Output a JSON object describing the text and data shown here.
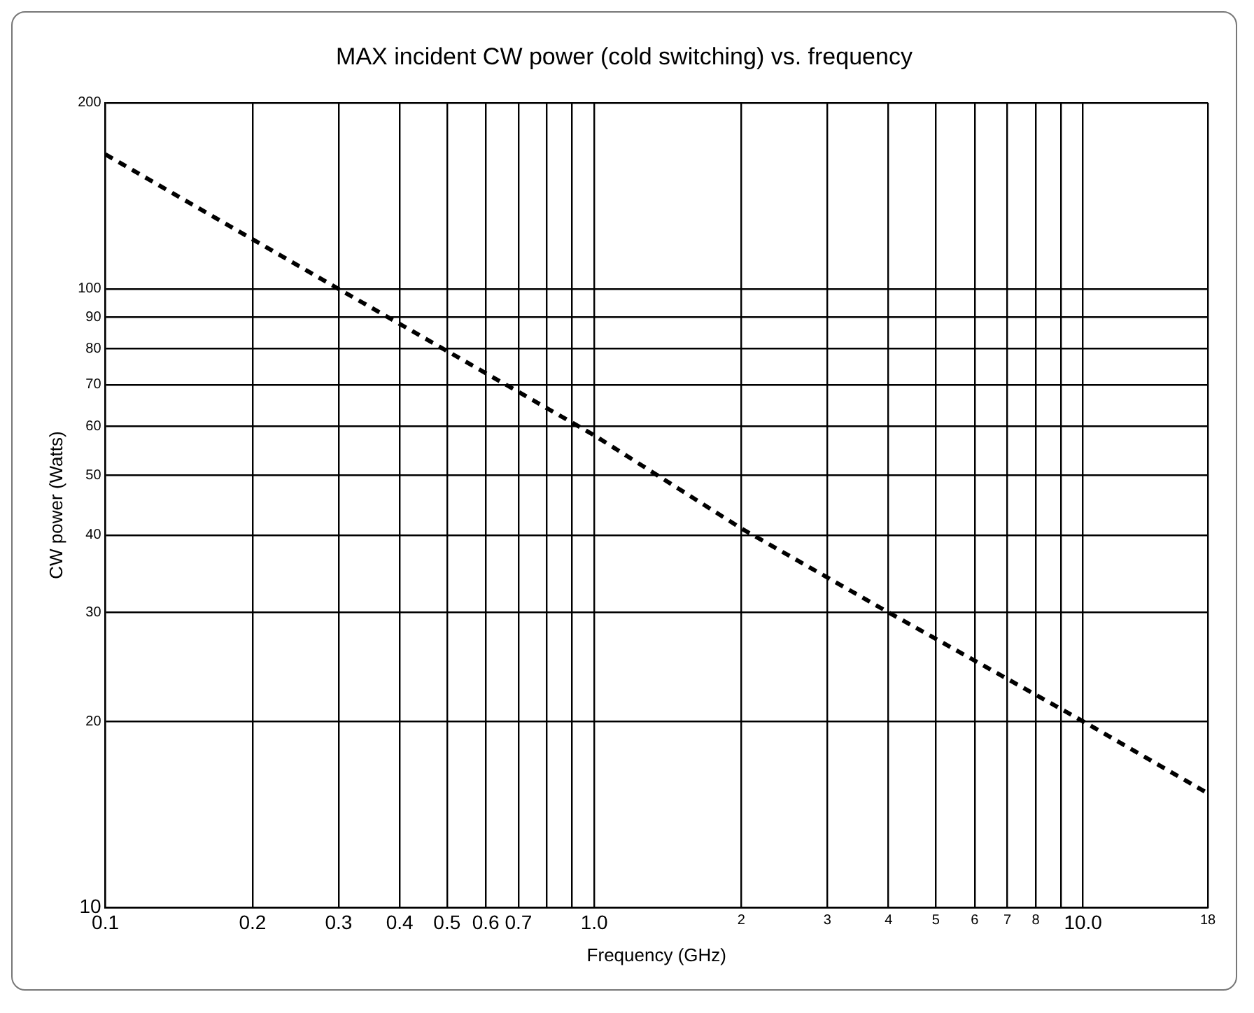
{
  "chart_data": {
    "type": "line",
    "title": "MAX incident CW power (cold switching) vs. frequency",
    "xlabel": "Frequency (GHz)",
    "ylabel": "CW power (Watts)",
    "log": "xy",
    "grid": true,
    "legend": false,
    "marker": "none",
    "line_style": "dashed",
    "xlim": [
      0.1,
      18
    ],
    "ylim": [
      10,
      200
    ],
    "xticks": [
      0.1,
      0.2,
      0.3,
      0.4,
      0.5,
      0.6,
      0.7,
      {
        "value": 0.8,
        "label": null
      },
      {
        "value": 0.9,
        "label": null
      },
      {
        "value": 1,
        "label": "1.0"
      },
      2,
      3,
      4,
      5,
      6,
      7,
      8,
      {
        "value": 9,
        "label": null
      },
      {
        "value": 10,
        "label": "10.0"
      },
      18
    ],
    "yticks": [
      10,
      20,
      30,
      40,
      50,
      60,
      70,
      80,
      90,
      100,
      200
    ],
    "series": [
      {
        "color": "#000000",
        "x": [
          0.1,
          0.3,
          1,
          2,
          4,
          10,
          18
        ],
        "values": [
          165,
          100,
          58,
          41,
          30,
          20,
          15.3
        ]
      }
    ]
  }
}
